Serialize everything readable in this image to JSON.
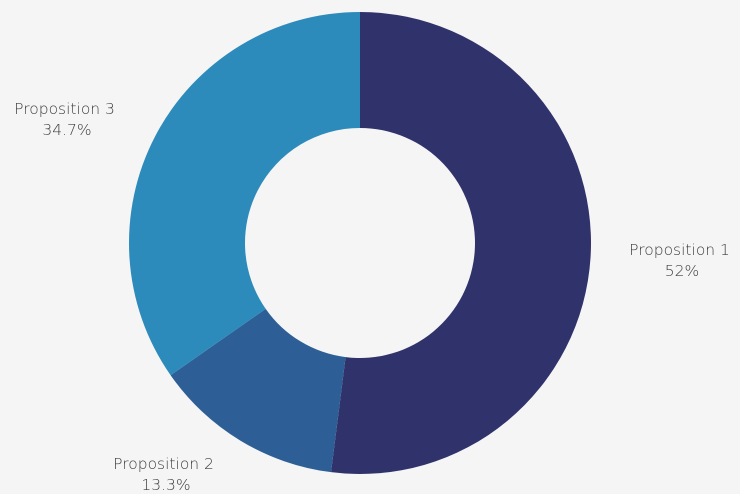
{
  "chart_data": {
    "type": "pie",
    "variant": "donut",
    "title": "",
    "series": [
      {
        "name": "",
        "slices": [
          {
            "label": "Proposition 1",
            "value": 52,
            "value_label": "52%",
            "color": "#30336b"
          },
          {
            "label": "Proposition 2",
            "value": 13.3,
            "value_label": "13.3%",
            "color": "#2d5f96"
          },
          {
            "label": "Proposition 3",
            "value": 34.7,
            "value_label": "34.7%",
            "color": "#2d8bbb"
          }
        ]
      }
    ],
    "start": "top",
    "direction": "clockwise",
    "legend": "none",
    "background": "#f5f5f5"
  }
}
